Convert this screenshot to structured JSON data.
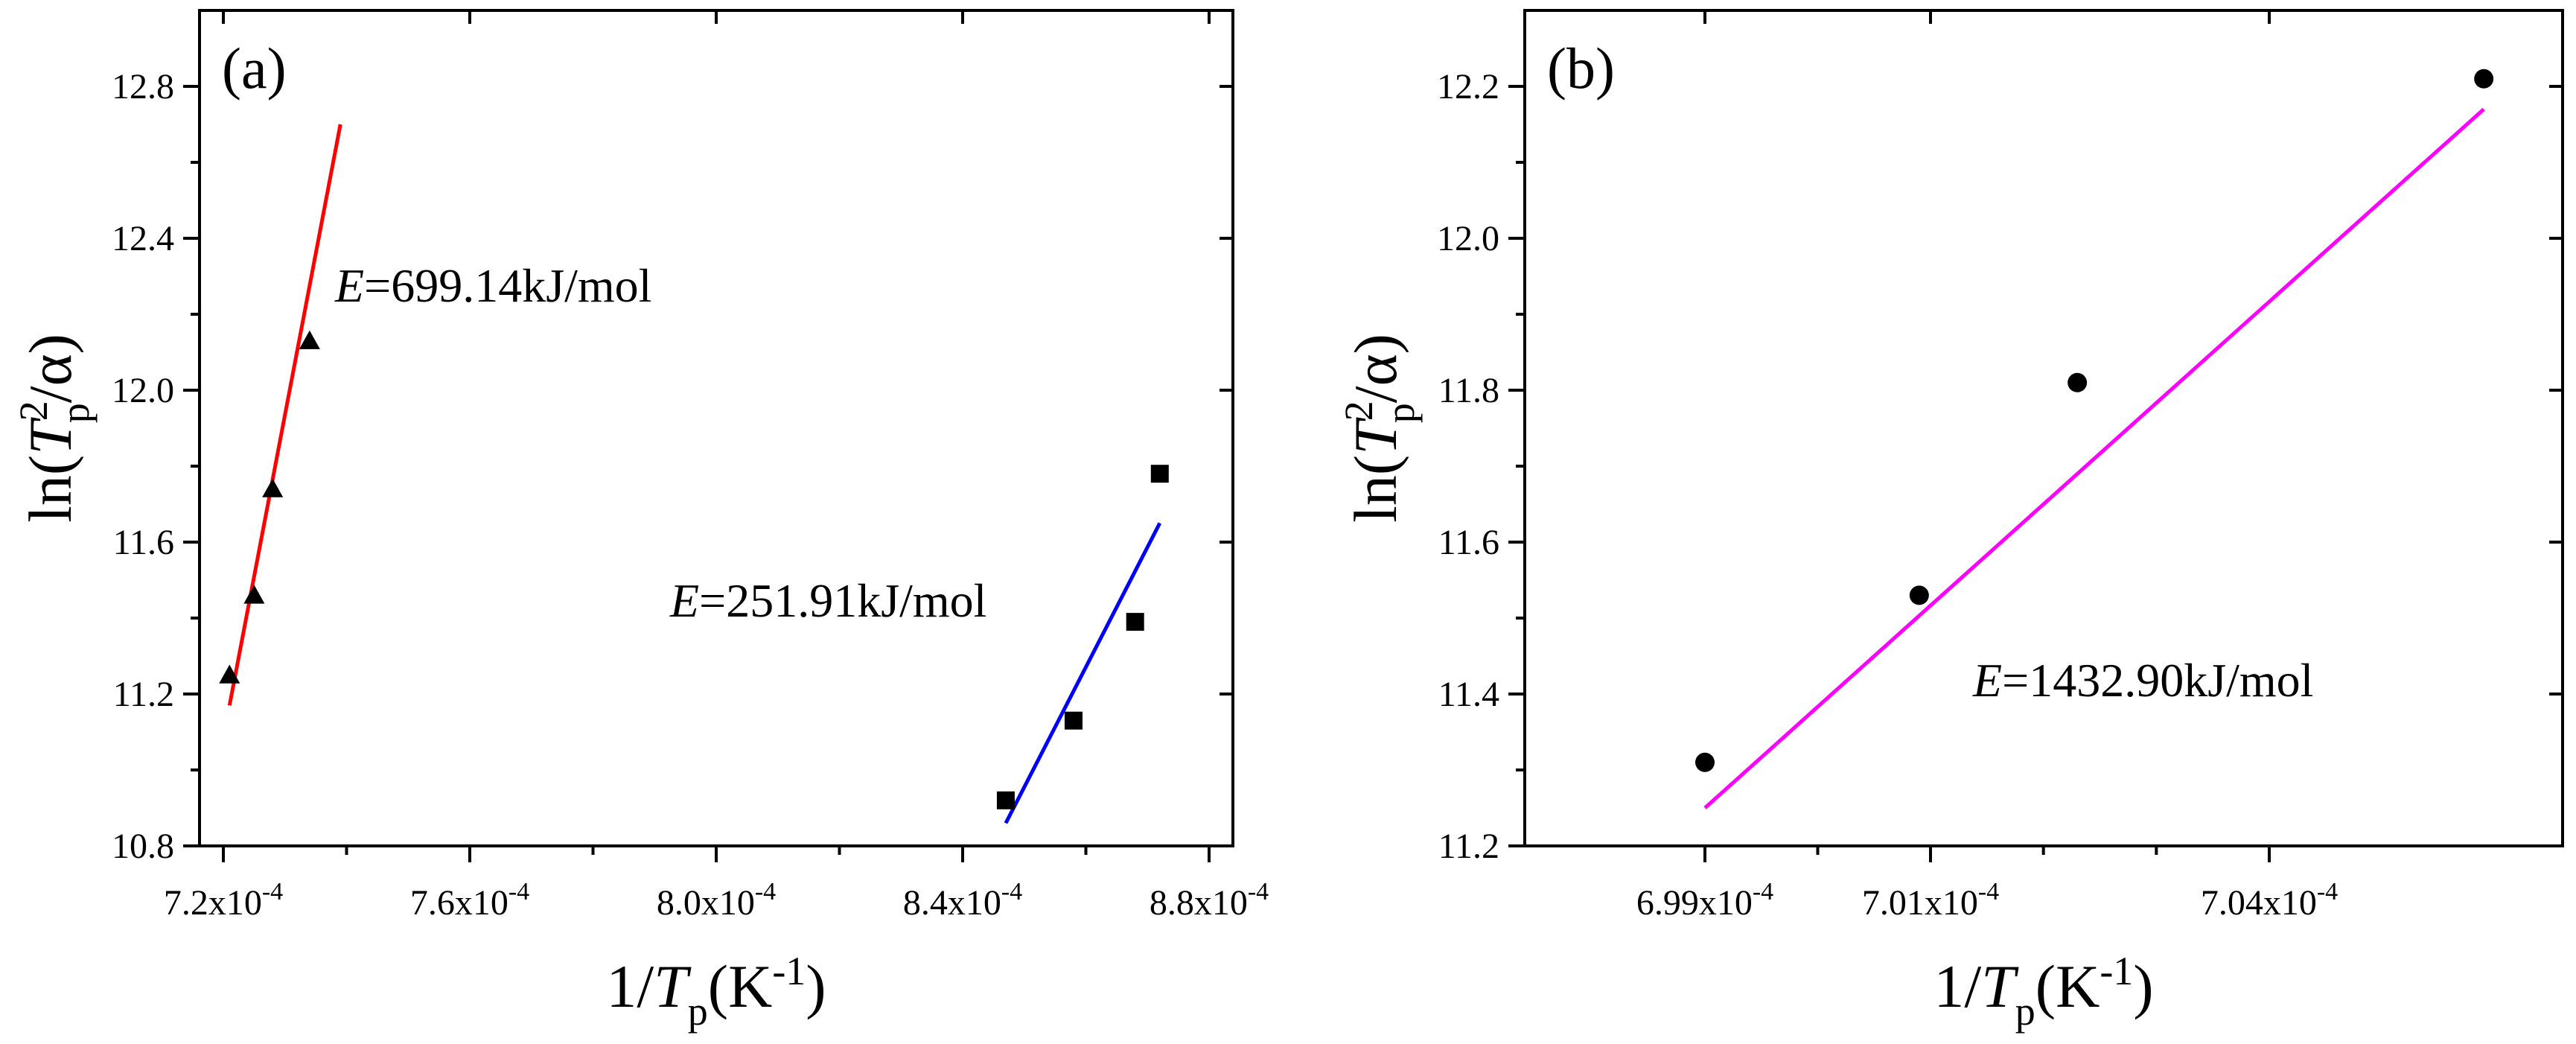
{
  "chart_data": [
    {
      "type": "scatter",
      "panel_label": "(a)",
      "xlim": [
        0.000716,
        0.000884
      ],
      "ylim": [
        10.8,
        13.0
      ],
      "xticks": [
        0.00072,
        0.00076,
        0.0008,
        0.00084,
        0.00088
      ],
      "xtick_labels": [
        {
          "mant": "7.2x10",
          "exp": "-4"
        },
        {
          "mant": "7.6x10",
          "exp": "-4"
        },
        {
          "mant": "8.0x10",
          "exp": "-4"
        },
        {
          "mant": "8.4x10",
          "exp": "-4"
        },
        {
          "mant": "8.8x10",
          "exp": "-4"
        }
      ],
      "yticks": [
        10.8,
        11.2,
        11.6,
        12.0,
        12.4,
        12.8
      ],
      "ytick_labels": [
        "10.8",
        "11.2",
        "11.6",
        "12.0",
        "12.4",
        "12.8"
      ],
      "xlabel": {
        "pre": "1/",
        "var": "T",
        "sub": "p",
        "post": "(K",
        "sup": "-1",
        "end": ")"
      },
      "ylabel": {
        "pre": "ln(",
        "var": "T",
        "sup": "2",
        "sub": "p",
        "post": "/α)"
      },
      "series": [
        {
          "name": "triangles",
          "marker": "triangle",
          "color": "#000000",
          "x": [
            0.000721,
            0.000725,
            0.000728,
            0.000734
          ],
          "y": [
            11.25,
            11.46,
            11.74,
            12.13
          ],
          "fit": {
            "color": "#ff0000",
            "x": [
              0.000721,
              0.000739
            ],
            "y": [
              11.17,
              12.7
            ]
          },
          "annotation": {
            "E": "E",
            "text": "=699.14kJ/mol"
          }
        },
        {
          "name": "squares",
          "marker": "square",
          "color": "#000000",
          "x": [
            0.000847,
            0.000858,
            0.000868,
            0.000872
          ],
          "y": [
            10.92,
            11.13,
            11.39,
            11.78
          ],
          "fit": {
            "color": "#0000ff",
            "x": [
              0.000847,
              0.000872
            ],
            "y": [
              10.86,
              11.65
            ]
          },
          "annotation": {
            "E": "E",
            "text": "=251.91kJ/mol"
          }
        }
      ]
    },
    {
      "type": "scatter",
      "panel_label": "(b)",
      "xlim": [
        0.0006976,
        0.0007066
      ],
      "ylim": [
        11.2,
        12.3
      ],
      "xticks": [
        0.000699,
        0.000701,
        0.000704
      ],
      "xtick_labels": [
        {
          "mant": "6.99x10",
          "exp": "-4"
        },
        {
          "mant": "7.01x10",
          "exp": "-4"
        },
        {
          "mant": "7.04x10",
          "exp": "-4"
        }
      ],
      "yticks": [
        11.2,
        11.4,
        11.6,
        11.8,
        12.0,
        12.2
      ],
      "ytick_labels": [
        "11.2",
        "11.4",
        "11.6",
        "11.8",
        "12.0",
        "12.2"
      ],
      "xlabel": {
        "pre": "1/",
        "var": "T",
        "sub": "p",
        "post": "(K",
        "sup": "-1",
        "end": ")"
      },
      "ylabel": {
        "pre": "ln(",
        "var": "T",
        "sup": "2",
        "sub": "p",
        "post": "/α)"
      },
      "series": [
        {
          "name": "circles",
          "marker": "circle",
          "color": "#000000",
          "x": [
            0.000699,
            0.0007009,
            0.0007023,
            0.0007059
          ],
          "y": [
            11.31,
            11.53,
            11.81,
            12.21
          ],
          "fit": {
            "color": "#ff00ff",
            "x": [
              0.000699,
              0.0007059
            ],
            "y": [
              11.25,
              12.17
            ]
          },
          "annotation": {
            "E": "E",
            "text": "=1432.90kJ/mol"
          }
        }
      ]
    }
  ]
}
